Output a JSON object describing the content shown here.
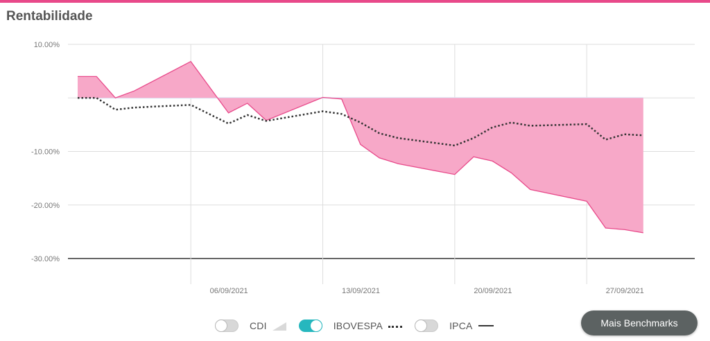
{
  "header": {
    "title": "Rentabilidade"
  },
  "colors": {
    "accent": "#e8498a",
    "fill": "#f7a8c8",
    "toggle_on": "#26b7be",
    "benchmark_line": "#333333"
  },
  "legend": {
    "items": [
      {
        "label": "CDI",
        "enabled": false,
        "swatch": "area"
      },
      {
        "label": "IBOVESPA",
        "enabled": true,
        "swatch": "dotted-line"
      },
      {
        "label": "IPCA",
        "enabled": false,
        "swatch": "solid-line"
      }
    ]
  },
  "actions": {
    "benchmarks_label": "Mais Benchmarks"
  },
  "chart_data": {
    "type": "area",
    "ylim": [
      -30,
      10
    ],
    "y_ticks": [
      10,
      0,
      -10,
      -20,
      -30
    ],
    "y_tick_labels": [
      "10.00%",
      "",
      "-10.00%",
      "-20.00%",
      "-30.00%"
    ],
    "x_range": [
      "2021-08-31",
      "2021-10-01"
    ],
    "x_ticks": [
      "2021-09-06",
      "2021-09-13",
      "2021-09-20",
      "2021-09-27"
    ],
    "x_tick_labels": [
      "06/09/2021",
      "13/09/2021",
      "20/09/2021",
      "27/09/2021"
    ],
    "grid": true,
    "legend_placement": "bottom-center",
    "series": [
      {
        "kind": "area",
        "x": [
          "2021-08-31",
          "2021-09-01",
          "2021-09-02",
          "2021-09-03",
          "2021-09-06",
          "2021-09-08",
          "2021-09-09",
          "2021-09-10",
          "2021-09-13",
          "2021-09-14",
          "2021-09-15",
          "2021-09-16",
          "2021-09-17",
          "2021-09-20",
          "2021-09-21",
          "2021-09-22",
          "2021-09-23",
          "2021-09-24",
          "2021-09-27",
          "2021-09-28",
          "2021-09-29",
          "2021-09-30"
        ],
        "y": [
          4.0,
          4.0,
          0.0,
          1.3,
          6.8,
          -2.8,
          -1.0,
          -4.2,
          0.1,
          -0.2,
          -8.7,
          -11.2,
          -12.3,
          -14.3,
          -11.0,
          -11.8,
          -14.0,
          -17.1,
          -19.3,
          -24.3,
          -24.6,
          -25.2
        ]
      },
      {
        "kind": "dotted-line",
        "x": [
          "2021-08-31",
          "2021-09-01",
          "2021-09-02",
          "2021-09-03",
          "2021-09-06",
          "2021-09-08",
          "2021-09-09",
          "2021-09-10",
          "2021-09-13",
          "2021-09-14",
          "2021-09-15",
          "2021-09-16",
          "2021-09-17",
          "2021-09-20",
          "2021-09-21",
          "2021-09-22",
          "2021-09-23",
          "2021-09-24",
          "2021-09-27",
          "2021-09-28",
          "2021-09-29",
          "2021-09-30"
        ],
        "y": [
          0.0,
          0.0,
          -2.2,
          -1.8,
          -1.3,
          -4.8,
          -3.2,
          -4.3,
          -2.5,
          -3.0,
          -4.6,
          -6.6,
          -7.5,
          -8.9,
          -7.5,
          -5.5,
          -4.6,
          -5.2,
          -4.9,
          -7.8,
          -6.8,
          -7.0
        ]
      }
    ]
  }
}
